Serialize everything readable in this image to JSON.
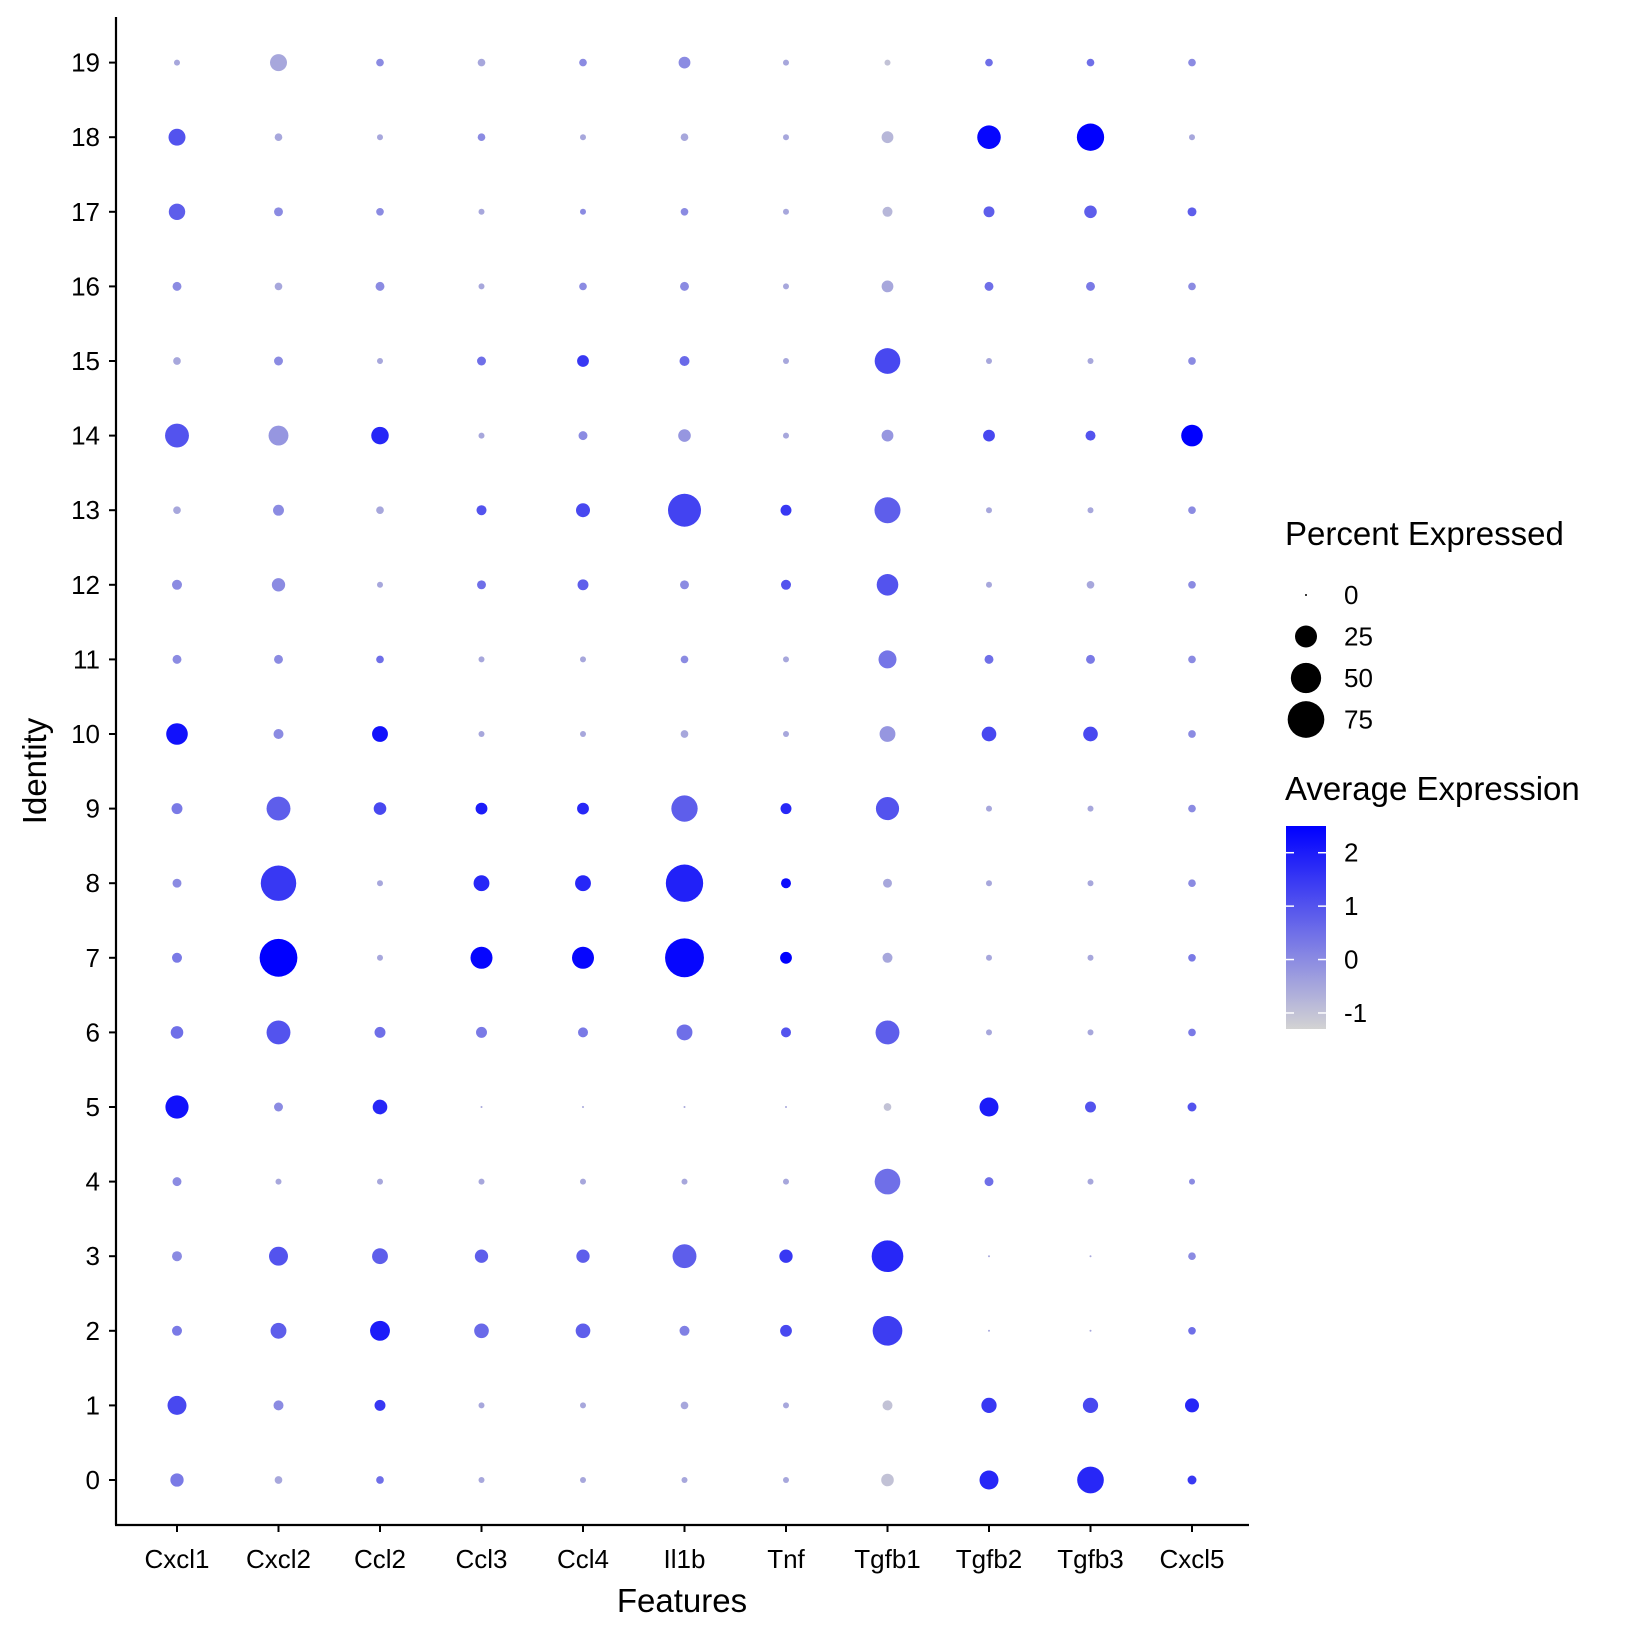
{
  "chart_data": {
    "type": "dotplot",
    "xlabel": "Features",
    "ylabel": "Identity",
    "features": [
      "Cxcl1",
      "Cxcl2",
      "Ccl2",
      "Ccl3",
      "Ccl4",
      "Il1b",
      "Tnf",
      "Tgfb1",
      "Tgfb2",
      "Tgfb3",
      "Cxcl5"
    ],
    "identities": [
      "0",
      "1",
      "2",
      "3",
      "4",
      "5",
      "6",
      "7",
      "8",
      "9",
      "10",
      "11",
      "12",
      "13",
      "14",
      "15",
      "16",
      "17",
      "18",
      "19"
    ],
    "size_legend": {
      "title": "Percent Expressed",
      "breaks": [
        0,
        25,
        50,
        75
      ],
      "labels": [
        "0",
        "25",
        "50",
        "75"
      ]
    },
    "color_legend": {
      "title": "Average Expression",
      "breaks": [
        2,
        1,
        0,
        -1
      ],
      "labels": [
        "2",
        "1",
        "0",
        "-1"
      ],
      "range": [
        -1.3,
        2.5
      ],
      "low_color": "#d3d3d3",
      "high_color": "#0000ff"
    },
    "pct_expressed": [
      [
        8,
        2,
        2,
        1,
        1,
        1,
        1,
        7,
        18,
        38,
        3
      ],
      [
        18,
        4,
        5,
        1,
        1,
        2,
        1,
        4,
        11,
        11,
        9
      ],
      [
        4,
        12,
        20,
        10,
        10,
        4,
        6,
        48,
        0,
        0,
        2
      ],
      [
        4,
        18,
        12,
        8,
        8,
        30,
        8,
        55,
        0,
        0,
        2
      ],
      [
        3,
        1,
        1,
        1,
        1,
        1,
        1,
        35,
        3,
        1,
        1
      ],
      [
        28,
        3,
        10,
        0,
        0,
        0,
        0,
        2,
        18,
        5,
        3
      ],
      [
        7,
        30,
        5,
        5,
        4,
        12,
        4,
        30,
        1,
        1,
        2
      ],
      [
        4,
        80,
        1,
        25,
        25,
        85,
        6,
        4,
        1,
        1,
        2
      ],
      [
        3,
        70,
        1,
        12,
        12,
        78,
        4,
        3,
        1,
        1,
        2
      ],
      [
        5,
        30,
        7,
        6,
        6,
        37,
        5,
        28,
        1,
        1,
        2
      ],
      [
        24,
        4,
        12,
        1,
        1,
        2,
        1,
        12,
        10,
        10,
        2
      ],
      [
        3,
        3,
        2,
        1,
        1,
        2,
        1,
        16,
        3,
        3,
        2
      ],
      [
        4,
        8,
        1,
        3,
        5,
        3,
        4,
        24,
        1,
        2,
        2
      ],
      [
        2,
        5,
        2,
        4,
        9,
        60,
        5,
        36,
        1,
        1,
        2
      ],
      [
        30,
        20,
        15,
        1,
        3,
        7,
        1,
        6,
        6,
        4,
        24
      ],
      [
        2,
        3,
        1,
        3,
        6,
        4,
        1,
        35,
        1,
        1,
        2
      ],
      [
        3,
        2,
        3,
        1,
        2,
        3,
        1,
        6,
        3,
        3,
        2
      ],
      [
        13,
        3,
        2,
        1,
        1,
        2,
        1,
        4,
        5,
        7,
        3
      ],
      [
        14,
        2,
        1,
        2,
        1,
        2,
        1,
        6,
        29,
        40,
        1
      ],
      [
        1,
        14,
        2,
        2,
        2,
        6,
        1,
        1,
        2,
        2,
        2
      ]
    ],
    "avg_expression": [
      [
        0.3,
        -0.5,
        0.5,
        -0.5,
        -0.5,
        -0.5,
        -0.5,
        -1.0,
        1.8,
        1.8,
        1.5
      ],
      [
        1.2,
        0.0,
        1.5,
        -0.5,
        -0.5,
        -0.5,
        -0.5,
        -1.0,
        1.5,
        1.2,
        1.8
      ],
      [
        0.3,
        0.8,
        2.0,
        0.6,
        0.8,
        0.2,
        1.2,
        1.4,
        -0.5,
        -0.5,
        0.5
      ],
      [
        0.0,
        1.0,
        0.8,
        0.8,
        0.8,
        0.8,
        1.5,
        1.8,
        -0.5,
        -0.5,
        0.0
      ],
      [
        0.0,
        -0.5,
        -0.5,
        -0.5,
        -0.5,
        -0.5,
        -0.5,
        0.5,
        0.5,
        -0.5,
        0.0
      ],
      [
        2.2,
        0.0,
        1.8,
        -0.5,
        -0.5,
        -0.5,
        -0.5,
        -1.0,
        2.0,
        1.0,
        1.0
      ],
      [
        0.5,
        1.0,
        0.5,
        0.3,
        0.3,
        0.5,
        1.0,
        0.8,
        -0.5,
        -0.5,
        0.3
      ],
      [
        0.3,
        2.5,
        -0.5,
        2.4,
        2.4,
        2.4,
        2.5,
        -0.5,
        -0.5,
        -0.5,
        0.3
      ],
      [
        0.0,
        1.5,
        -0.5,
        1.8,
        1.8,
        1.9,
        2.3,
        -0.5,
        -0.5,
        -0.5,
        0.0
      ],
      [
        0.3,
        0.8,
        1.2,
        2.0,
        1.8,
        0.8,
        1.8,
        1.0,
        -0.5,
        -0.5,
        0.0
      ],
      [
        2.2,
        0.0,
        2.2,
        -0.5,
        -0.5,
        -0.5,
        -0.5,
        -0.2,
        1.2,
        1.2,
        0.0
      ],
      [
        0.0,
        0.0,
        0.5,
        -0.5,
        -0.5,
        0.0,
        -0.5,
        0.4,
        0.5,
        0.3,
        0.0
      ],
      [
        0.0,
        0.0,
        -0.5,
        0.5,
        0.8,
        0.0,
        1.0,
        1.0,
        -0.5,
        -0.5,
        0.0
      ],
      [
        -0.5,
        0.0,
        -0.5,
        1.0,
        1.2,
        1.3,
        1.5,
        0.8,
        -0.5,
        -0.5,
        0.0
      ],
      [
        1.0,
        -0.2,
        1.8,
        -0.5,
        0.0,
        -0.2,
        -0.5,
        -0.2,
        1.2,
        1.0,
        2.5
      ],
      [
        -0.5,
        0.0,
        -0.5,
        0.5,
        1.5,
        0.6,
        -0.5,
        1.2,
        -0.5,
        -0.5,
        0.0
      ],
      [
        0.0,
        -0.5,
        0.0,
        -0.5,
        0.0,
        0.0,
        -0.5,
        -0.5,
        0.5,
        0.3,
        0.0
      ],
      [
        0.8,
        0.0,
        0.0,
        -0.5,
        0.0,
        0.0,
        -0.5,
        -0.8,
        0.8,
        0.8,
        0.8
      ],
      [
        1.0,
        -0.5,
        -0.5,
        0.0,
        -0.5,
        -0.5,
        -0.5,
        -0.8,
        2.4,
        2.5,
        -0.5
      ],
      [
        -0.5,
        -0.5,
        0.0,
        -0.5,
        0.0,
        0.0,
        -0.5,
        -1.0,
        0.5,
        0.5,
        0.0
      ]
    ]
  }
}
